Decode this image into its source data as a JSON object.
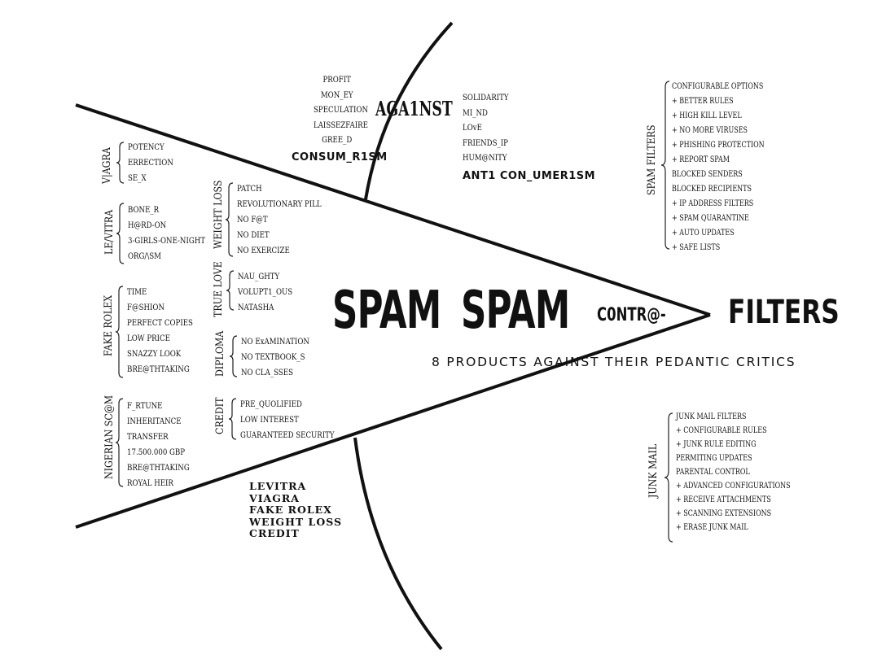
{
  "title": {
    "spam1": "SPAM",
    "spam2": "SPAM",
    "contra": "C0NTR@-",
    "filters": "FILTERS",
    "subtitle": "8 PRODUCTS AGAINST THEIR PEDANTIC CRITICS"
  },
  "groups": [
    {
      "label": "V|AGRA",
      "items": [
        "POTENCY",
        "ERRECTION",
        "SE_X"
      ]
    },
    {
      "label": "LE/VITRA",
      "items": [
        "BONE_R",
        "H@RD-ON",
        "3-GIRLS-ONE-NIGHT",
        "ORG/\\SM"
      ]
    },
    {
      "label": "FAKE ROLEX",
      "items": [
        "TIME",
        "F@SHION",
        "PERFECT COPIES",
        "LOW PRICE",
        "SNAZZY LOOK",
        "BRE@THTAKING"
      ]
    },
    {
      "label": "NIGERIAN SC@M",
      "items": [
        "F_RTUNE",
        "INHERITANCE",
        "TRANSFER",
        "17.500.000 GBP",
        "BRE@THTAKING",
        "ROYAL HEIR"
      ]
    },
    {
      "label": "WEIGHT LOSS",
      "items": [
        "PATCH",
        "REVOLUTIONARY PILL",
        "NO F@T",
        "NO DIET",
        "NO EXERCIZE"
      ]
    },
    {
      "label": "TRUE LOVE",
      "items": [
        "NAU_GHTY",
        "VOLUPT1_OUS",
        "NATASHA"
      ]
    },
    {
      "label": "DIPLOMA",
      "items": [
        "NO ExAMINATION",
        "NO TEXTBOOK_S",
        "NO CLA_SSES"
      ]
    },
    {
      "label": "CREDIT",
      "items": [
        "PRE_QUOLIFIED",
        "LOW INTEREST",
        "GUARANTEED SECURITY"
      ]
    }
  ],
  "consumerism": {
    "items": [
      "PROFIT",
      "MON_EY",
      "SPECULATION",
      "LAISSEZFAIRE",
      "GREE_D"
    ],
    "heading": "CONSUM_R1SM"
  },
  "against": "AGA1NST",
  "anticonsumerism": {
    "items": [
      "SOLIDARITY",
      "MI_ND",
      "LOvE",
      "FRIENDS_IP",
      "HUM@NITY"
    ],
    "heading": "ANT1 CON_UMER1SM"
  },
  "bottom_list": [
    "LEVITRA",
    "VIAGRA",
    "FAKE ROLEX",
    "WEIGHT LOSS",
    "CREDIT"
  ],
  "spam_filters": {
    "label": "SPAM FILTERS",
    "items": [
      "CONFIGURABLE OPTIONS",
      "+ BETTER RULES",
      "+ HIGH KILL LEVEL",
      "+ NO MORE VIRUSES",
      "+ PHISHING PROTECTION",
      "+ REPORT SPAM",
      "BLOCKED SENDERS",
      "BLOCKED RECIPIENTS",
      "+ IP ADDRESS FILTERS",
      "+ SPAM QUARANTINE",
      "+ AUTO UPDATES",
      "+ SAFE LISTS"
    ]
  },
  "junk_mail": {
    "label": "JUNK MAIL",
    "items": [
      "JUNK MAIL FILTERS",
      "+ CONFIGURABLE RULES",
      "+ JUNK RULE EDITING",
      "PERMITING UPDATES",
      "PARENTAL CONTROL",
      "+ ADVANCED CONFIGURATIONS",
      "+ RECEIVE ATTACHMENTS",
      "+ SCANNING EXTENSIONS",
      "+ ERASE JUNK MAIL"
    ]
  }
}
